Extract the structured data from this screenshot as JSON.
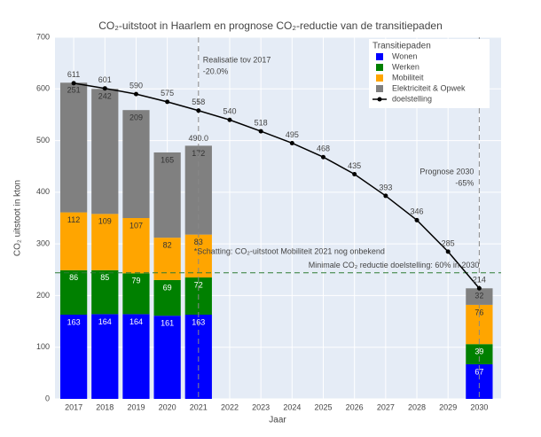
{
  "chart_data": {
    "type": "bar",
    "title": "CO₂-uitstoot in Haarlem en prognose CO₂-reductie van de transitiepaden",
    "xlabel": "Jaar",
    "ylabel": "CO₂ uitstoot in kton",
    "legend_title": "Transitiepaden",
    "legend": "top-right",
    "grid": true,
    "xlim": [
      2016.4,
      2030.7
    ],
    "xticks": [
      2017,
      2018,
      2019,
      2020,
      2021,
      2022,
      2023,
      2024,
      2025,
      2026,
      2027,
      2028,
      2029,
      2030
    ],
    "ylim": [
      0,
      700
    ],
    "yticks": [
      0,
      100,
      200,
      300,
      400,
      500,
      600,
      700
    ],
    "series": [
      {
        "name": "Wonen",
        "type": "bar",
        "color": "#0000ff",
        "x": [
          2017,
          2018,
          2019,
          2020,
          2021,
          2030
        ],
        "values": [
          163,
          164,
          164,
          161,
          163,
          67
        ]
      },
      {
        "name": "Werken",
        "type": "bar",
        "color": "#008000",
        "x": [
          2017,
          2018,
          2019,
          2020,
          2021,
          2030
        ],
        "values": [
          86,
          85,
          79,
          69,
          72,
          39
        ]
      },
      {
        "name": "Mobiliteit",
        "type": "bar",
        "color": "#ffa500",
        "x": [
          2017,
          2018,
          2019,
          2020,
          2021,
          2030
        ],
        "values": [
          112,
          109,
          107,
          82,
          83,
          76
        ]
      },
      {
        "name": "Elektriciteit & Opwek",
        "type": "bar",
        "color": "#808080",
        "x": [
          2017,
          2018,
          2019,
          2020,
          2021,
          2030
        ],
        "values": [
          251,
          242,
          209,
          165,
          172,
          32
        ]
      },
      {
        "name": "doelstelling",
        "type": "line",
        "color": "#000000",
        "x": [
          2017,
          2018,
          2019,
          2020,
          2021,
          2022,
          2023,
          2024,
          2025,
          2026,
          2027,
          2028,
          2029,
          2030
        ],
        "values": [
          611,
          601,
          590,
          575,
          558,
          540,
          518,
          495,
          468,
          435,
          393,
          346,
          285,
          214
        ]
      }
    ],
    "total_label": {
      "x": 2021,
      "value": 490,
      "label": "490.0"
    },
    "vlines": [
      2021,
      2030
    ],
    "hline": {
      "value": 244,
      "color": "#2e7d32"
    },
    "annotations": [
      "Realisatie tov 2017",
      "-20.0%",
      "Prognose 2030",
      "-65%",
      "*Schatting: CO₂-uitstoot Mobiliteit 2021 nog onbekend",
      "Minimale CO₂ reductie doelstelling: 60% in 2030"
    ]
  }
}
